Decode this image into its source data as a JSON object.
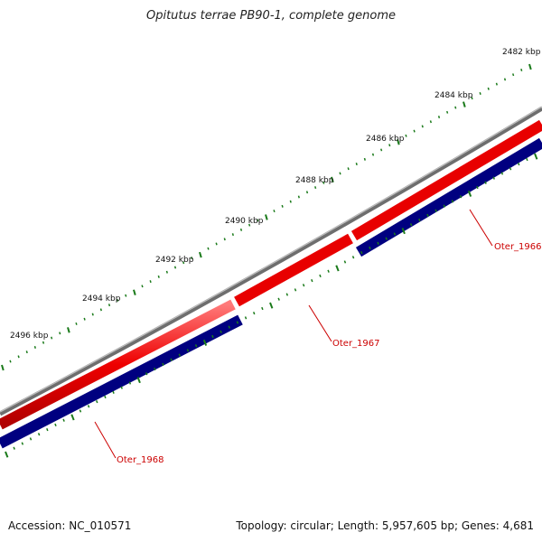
{
  "title": "Opitutus terrae PB90-1, complete genome",
  "footer": {
    "accession": "Accession: NC_010571",
    "summary": "Topology: circular; Length: 5,957,605 bp; Genes: 4,681"
  },
  "scale_labels": [
    "2482 kbp",
    "2484 kbp",
    "2486 kbp",
    "2488 kbp",
    "2490 kbp",
    "2492 kbp",
    "2494 kbp",
    "2496 kbp"
  ],
  "genes": [
    {
      "name": "Oter_1966",
      "strand": "reverse"
    },
    {
      "name": "Oter_1967",
      "strand": "forward"
    },
    {
      "name": "Oter_1968",
      "strand": "reverse"
    }
  ],
  "colors": {
    "backbone": "#7a7a7a",
    "forward": "#e00000",
    "reverse": "#00007a",
    "tick": "#1a7a1a",
    "gene_label": "#cc0000"
  }
}
